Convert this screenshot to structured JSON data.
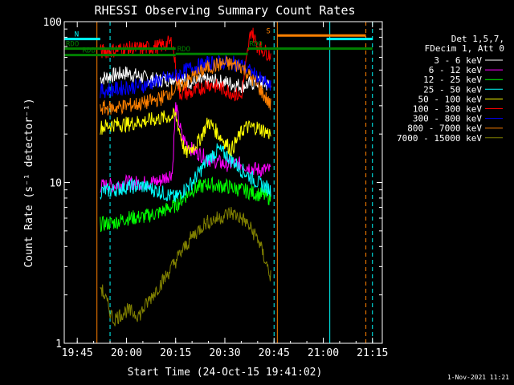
{
  "chart_data": {
    "type": "line",
    "title": "RHESSI Observing Summary Count Rates",
    "xlabel": "Start Time (24-Oct-15 19:41:02)",
    "ylabel": "Count Rate (s⁻¹ detector⁻¹)",
    "yscale": "log",
    "ylim": [
      1,
      100
    ],
    "xlim": [
      "19:41:02",
      "21:18:00"
    ],
    "x_ticks": [
      "19:45",
      "20:00",
      "20:15",
      "20:30",
      "20:45",
      "21:00",
      "21:15"
    ],
    "y_ticks": [
      "1",
      "10",
      "100"
    ],
    "grid": false,
    "legend_position": "top-right",
    "legend_header": [
      "Det 1,5,7,",
      "FDecim 1, Att 0"
    ],
    "data_gap": [
      "20:46:00",
      "21:16:00"
    ],
    "series": [
      {
        "name": "3 - 6 keV",
        "color": "#ffffff",
        "x": [
          "19:52",
          "19:55",
          "20:00",
          "20:05",
          "20:10",
          "20:15",
          "20:20",
          "20:25",
          "20:30",
          "20:35",
          "20:40",
          "20:44"
        ],
        "values": [
          44,
          46,
          48,
          45,
          43,
          45,
          42,
          43,
          42,
          40,
          42,
          40
        ]
      },
      {
        "name": "6 - 12 keV",
        "color": "#ff00ff",
        "x": [
          "19:52",
          "19:56",
          "20:00",
          "20:05",
          "20:10",
          "20:14",
          "20:15",
          "20:17",
          "20:20",
          "20:25",
          "20:30",
          "20:35",
          "20:40",
          "20:44"
        ],
        "values": [
          9.5,
          9.6,
          10,
          9.9,
          10.2,
          11.5,
          30,
          19,
          16,
          14,
          13,
          13,
          12,
          12
        ]
      },
      {
        "name": "12 - 25 keV",
        "color": "#00ff00",
        "x": [
          "19:52",
          "19:56",
          "20:00",
          "20:05",
          "20:10",
          "20:15",
          "20:20",
          "20:25",
          "20:28",
          "20:30",
          "20:35",
          "20:40",
          "20:44"
        ],
        "values": [
          5.5,
          5.6,
          6,
          6.1,
          6.5,
          7.2,
          9,
          9.8,
          9.5,
          9.5,
          9,
          8.5,
          8
        ]
      },
      {
        "name": "25 - 50 keV",
        "color": "#00ffff",
        "x": [
          "19:52",
          "19:56",
          "20:00",
          "20:05",
          "20:10",
          "20:15",
          "20:20",
          "20:25",
          "20:28",
          "20:31",
          "20:35",
          "20:40",
          "20:44"
        ],
        "values": [
          8.8,
          9,
          9.4,
          9.5,
          8.8,
          8,
          10,
          14,
          16,
          14.5,
          12,
          10,
          9
        ]
      },
      {
        "name": "50 - 100 keV",
        "color": "#ffff00",
        "x": [
          "19:52",
          "19:56",
          "20:00",
          "20:05",
          "20:10",
          "20:15",
          "20:18",
          "20:22",
          "20:25",
          "20:28",
          "20:32",
          "20:36",
          "20:40",
          "20:44"
        ],
        "values": [
          22,
          23,
          23,
          24,
          25,
          26,
          15,
          18,
          24,
          20,
          16,
          22,
          22,
          20
        ]
      },
      {
        "name": "100 - 300 keV",
        "color": "#ff0000",
        "x": [
          "19:52",
          "19:55",
          "20:00",
          "20:05",
          "20:10",
          "20:14",
          "20:16",
          "20:20",
          "20:25",
          "20:30",
          "20:35",
          "20:38",
          "20:40",
          "20:44"
        ],
        "values": [
          65,
          66,
          68,
          68,
          70,
          75,
          36,
          36,
          41,
          38,
          34,
          90,
          70,
          62
        ]
      },
      {
        "name": "300 - 800 keV",
        "color": "#0000ff",
        "x": [
          "19:52",
          "19:56",
          "20:00",
          "20:05",
          "20:10",
          "20:15",
          "20:20",
          "20:25",
          "20:30",
          "20:35",
          "20:40",
          "20:44"
        ],
        "values": [
          37,
          38,
          39,
          40,
          43,
          46,
          52,
          55,
          56,
          54,
          45,
          39
        ]
      },
      {
        "name": "800 - 7000 keV",
        "color": "#ff8000",
        "x": [
          "19:52",
          "19:56",
          "20:00",
          "20:05",
          "20:10",
          "20:15",
          "20:20",
          "20:25",
          "20:30",
          "20:35",
          "20:40",
          "20:44"
        ],
        "values": [
          29,
          29,
          30,
          31,
          33,
          38,
          45,
          52,
          55,
          53,
          40,
          30
        ]
      },
      {
        "name": "7000 - 15000 keV",
        "color": "#808000",
        "x": [
          "19:52",
          "19:56",
          "20:00",
          "20:04",
          "20:08",
          "20:12",
          "20:16",
          "20:20",
          "20:24",
          "20:28",
          "20:32",
          "20:36",
          "20:40",
          "20:44"
        ],
        "values": [
          2.3,
          1.4,
          1.6,
          1.5,
          2.0,
          2.6,
          3.5,
          4.6,
          5.6,
          6.0,
          6.5,
          5.8,
          4.5,
          2.6
        ]
      }
    ],
    "flag_bars": [
      {
        "label": "N",
        "color": "#00ffff",
        "segments": [
          [
            "19:41:02",
            "19:52"
          ],
          [
            "21:01",
            "21:15"
          ]
        ],
        "level": 78
      },
      {
        "label": "S",
        "color": "#ff8000",
        "segments": [
          [
            "20:46",
            "21:13"
          ]
        ],
        "level": 82
      },
      {
        "label": "RDO",
        "color": "#008000",
        "segments": [
          [
            "19:41:02",
            "20:15"
          ]
        ],
        "level": 68
      },
      {
        "label": "RDO",
        "color": "#008000",
        "segments": [
          [
            "20:37",
            "21:15"
          ]
        ],
        "level": 68
      },
      {
        "label": "RDO",
        "color": "#008000",
        "segments": [
          [
            "20:15",
            "20:37"
          ]
        ],
        "level": 63
      },
      {
        "label": "RDB",
        "color": "#008000",
        "segments": [
          [
            "19:41:02",
            "20:15"
          ]
        ],
        "level": 62
      }
    ],
    "vertical_markers": [
      {
        "x": "19:41:02",
        "color": "#00ffff",
        "style": "solid"
      },
      {
        "x": "19:51",
        "color": "#ff8000",
        "style": "solid"
      },
      {
        "x": "19:55",
        "color": "#00ffff",
        "style": "dashed"
      },
      {
        "x": "20:46",
        "color": "#ff8000",
        "style": "solid"
      },
      {
        "x": "20:45",
        "color": "#00ffff",
        "style": "dashed"
      },
      {
        "x": "21:02",
        "color": "#00ffff",
        "style": "solid"
      },
      {
        "x": "21:13",
        "color": "#ff8000",
        "style": "dashed"
      },
      {
        "x": "21:15",
        "color": "#00ffff",
        "style": "dashed"
      }
    ]
  },
  "footer": {
    "timestamp": "1-Nov-2021 11:21"
  }
}
